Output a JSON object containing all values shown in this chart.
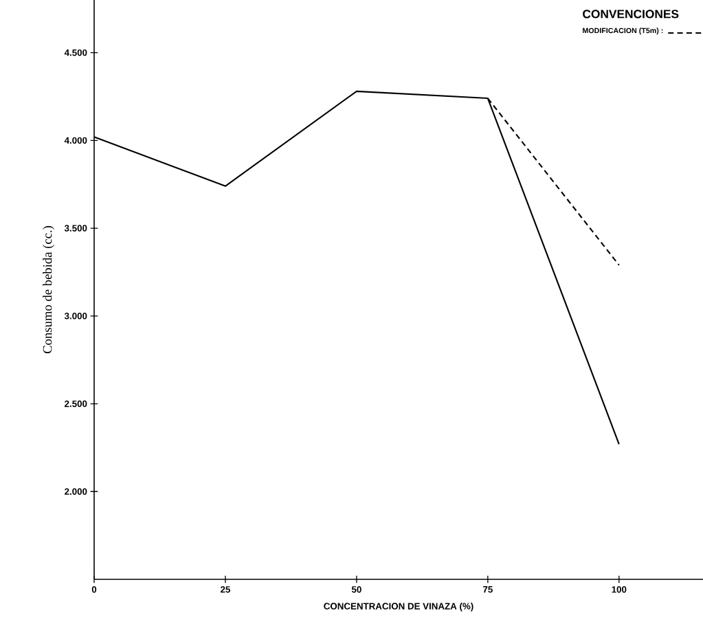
{
  "chart_data": {
    "type": "line",
    "xlabel": "CONCENTRACION  DE  VINAZA  (%)",
    "ylabel": "Consumo de bebida (cc.)",
    "legend_title": "CONVENCIONES",
    "legend": "top right",
    "xlim": [
      0,
      116
    ],
    "xticks": [
      0,
      25,
      50,
      75,
      100
    ],
    "ylim": [
      1500,
      4800
    ],
    "yticks": [
      {
        "value": 2000,
        "label": "2.000"
      },
      {
        "value": 2500,
        "label": "2.500"
      },
      {
        "value": 3000,
        "label": "3.000"
      },
      {
        "value": 3500,
        "label": "3.500"
      },
      {
        "value": 4000,
        "label": "4.000"
      },
      {
        "value": 4500,
        "label": "4.500"
      }
    ],
    "series": [
      {
        "x": [
          0,
          25,
          50,
          75,
          100
        ],
        "values": [
          4020,
          3740,
          4280,
          4240,
          2270
        ],
        "color": "#000000",
        "line_style": "solid"
      },
      {
        "name": "MODIFICACION  (T5m) :",
        "x": [
          75,
          100
        ],
        "values": [
          4240,
          3290
        ],
        "color": "#000000",
        "line_style": "dashed"
      }
    ]
  }
}
